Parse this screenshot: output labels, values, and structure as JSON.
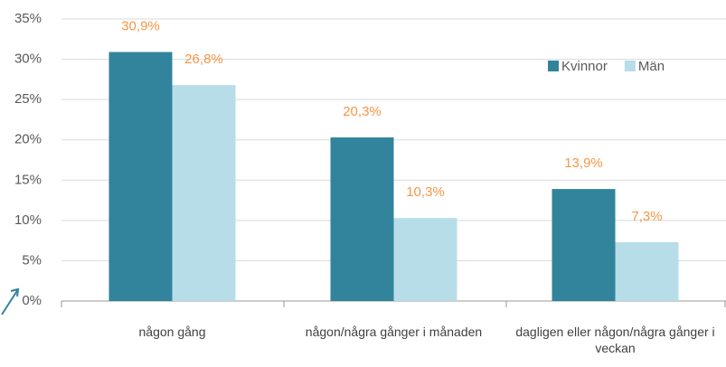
{
  "chart_data": {
    "type": "bar",
    "categories": [
      "någon gång",
      "någon/några gånger i månaden",
      "dagligen eller någon/några gånger i veckan"
    ],
    "series": [
      {
        "name": "Kvinnor",
        "color": "#31849b",
        "values": [
          30.9,
          20.3,
          13.9
        ],
        "value_labels": [
          "30,9%",
          "20,3%",
          "13,9%"
        ]
      },
      {
        "name": "Män",
        "color": "#b7dde8",
        "values": [
          26.8,
          10.3,
          7.3
        ],
        "value_labels": [
          "26,8%",
          "10,3%",
          "7,3%"
        ]
      }
    ],
    "ylim": [
      0,
      35
    ],
    "yticks": [
      {
        "value": 0,
        "label": "0%"
      },
      {
        "value": 5,
        "label": "5%"
      },
      {
        "value": 10,
        "label": "10%"
      },
      {
        "value": 15,
        "label": "15%"
      },
      {
        "value": 20,
        "label": "20%"
      },
      {
        "value": 25,
        "label": "25%"
      },
      {
        "value": 30,
        "label": "30%"
      },
      {
        "value": 35,
        "label": "35%"
      }
    ],
    "grid": true,
    "legend": "top-right",
    "value_label_color": "#f79646"
  }
}
